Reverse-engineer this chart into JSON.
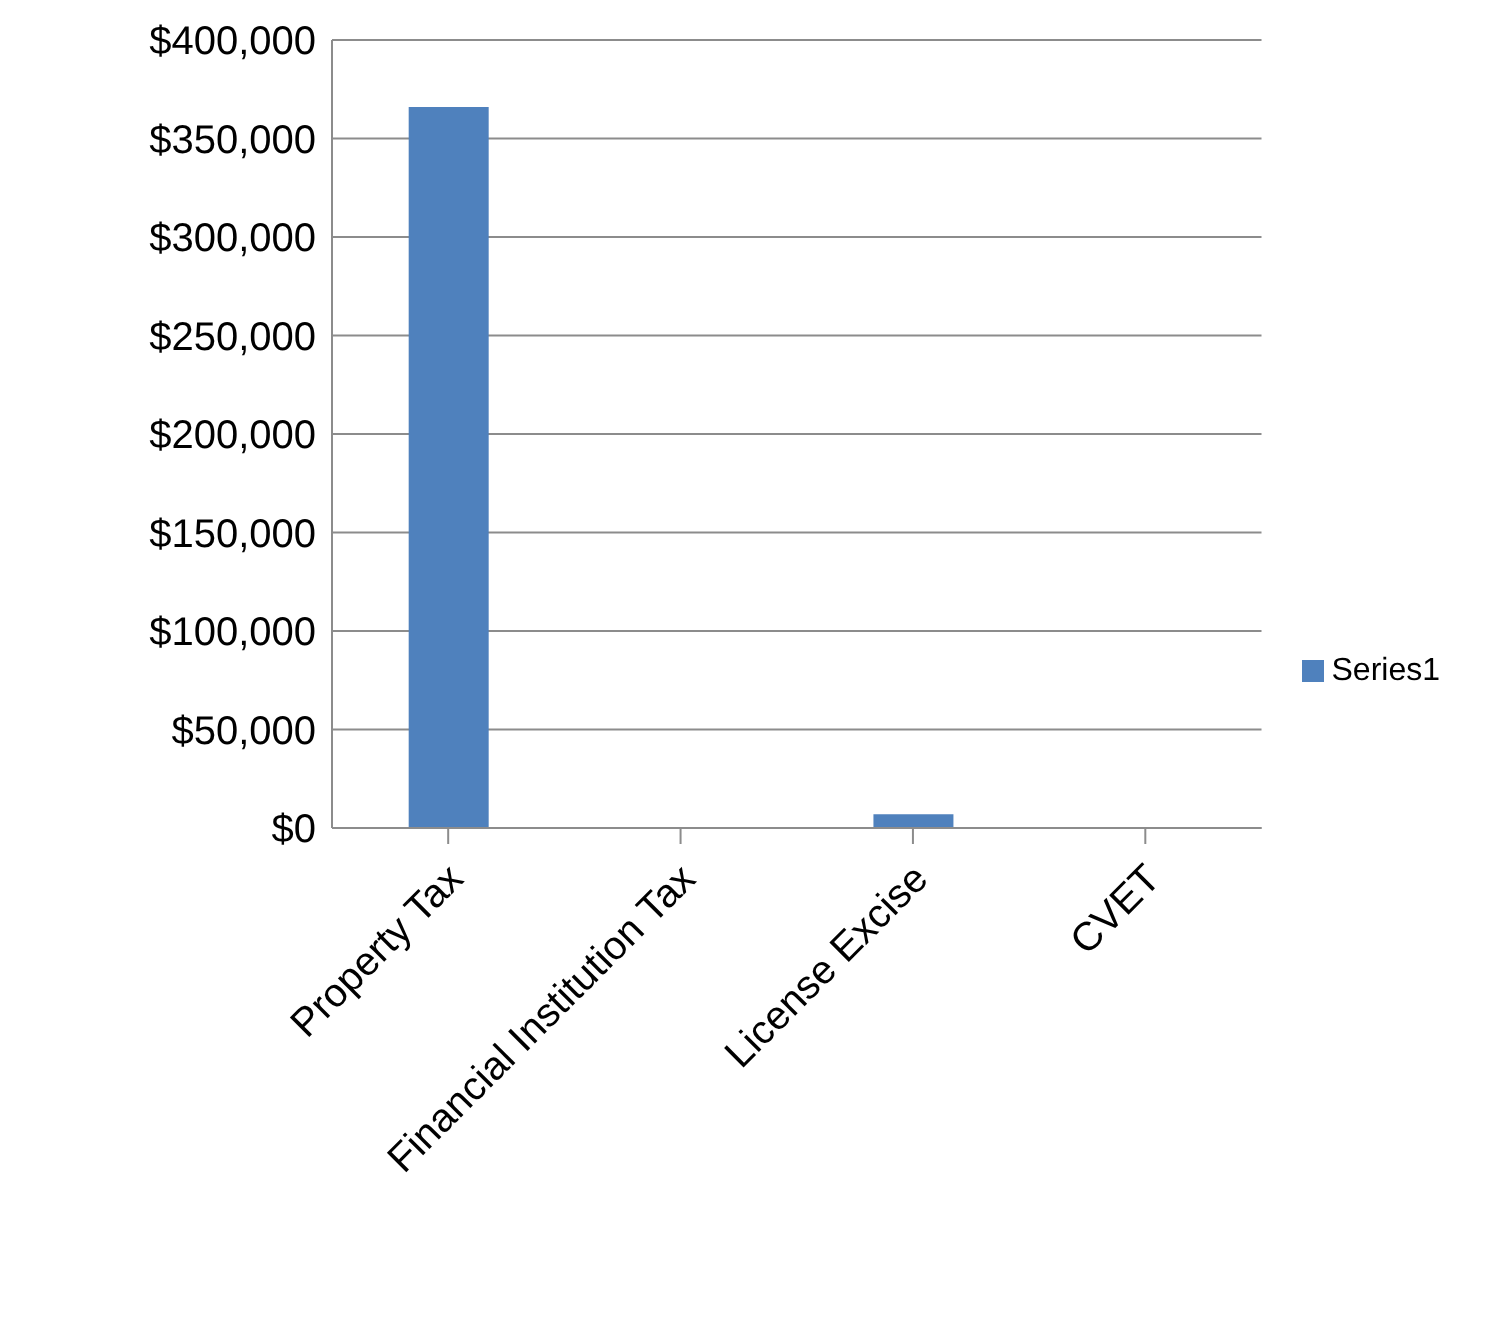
{
  "chart_data": {
    "type": "bar",
    "categories": [
      "Property Tax",
      "Financial Institution Tax",
      "License Excise",
      "CVET"
    ],
    "series": [
      {
        "name": "Series1",
        "color": "#4f81bd",
        "values": [
          366000,
          0,
          7000,
          0
        ]
      }
    ],
    "ylim": [
      0,
      400000
    ],
    "yticks": [
      {
        "value": 0,
        "label": "$0"
      },
      {
        "value": 50000,
        "label": "$50,000"
      },
      {
        "value": 100000,
        "label": "$100,000"
      },
      {
        "value": 150000,
        "label": "$150,000"
      },
      {
        "value": 200000,
        "label": "$200,000"
      },
      {
        "value": 250000,
        "label": "$250,000"
      },
      {
        "value": 300000,
        "label": "$300,000"
      },
      {
        "value": 350000,
        "label": "$350,000"
      },
      {
        "value": 400000,
        "label": "$400,000"
      }
    ],
    "grid": "y",
    "legend": "right"
  }
}
